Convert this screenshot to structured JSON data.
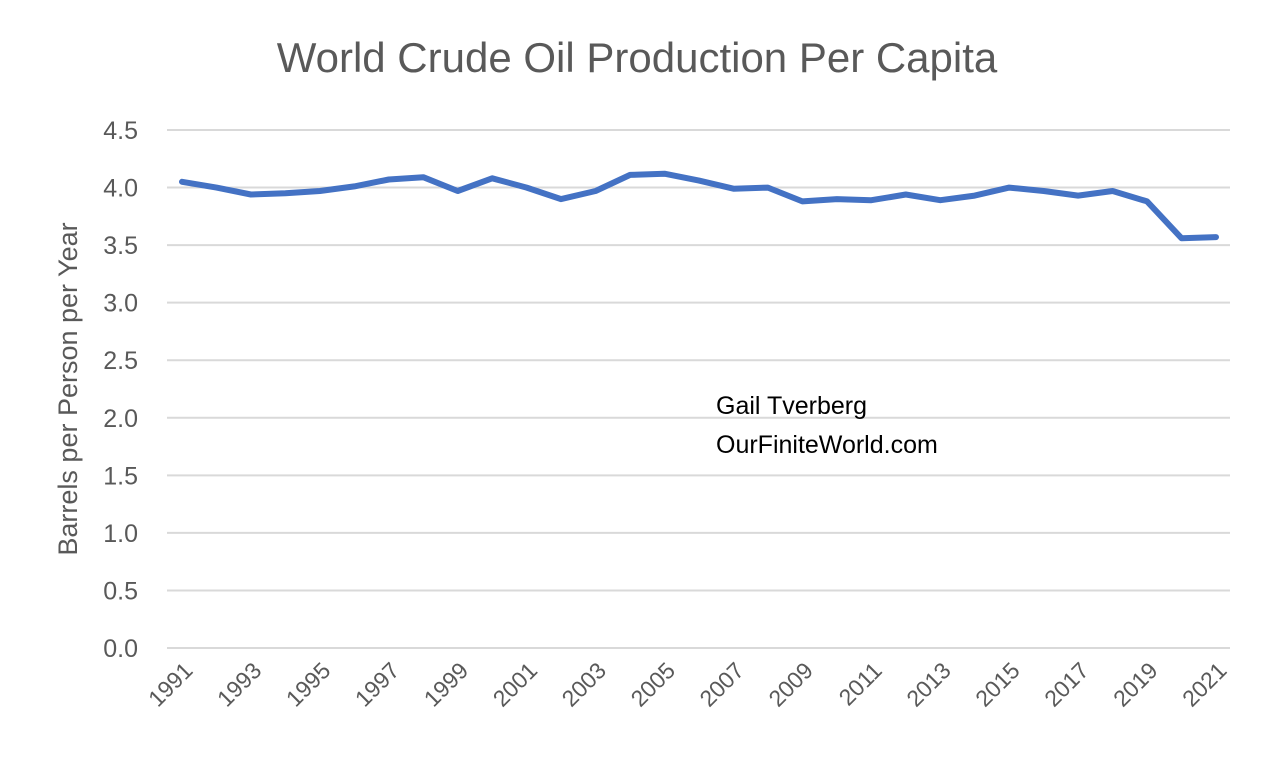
{
  "chart_data": {
    "type": "line",
    "title": "World Crude Oil Production Per Capita",
    "xlabel": "",
    "ylabel": "Barrels per Person per Year",
    "ylim": [
      0,
      4.5
    ],
    "yticks": [
      "0.0",
      "0.5",
      "1.0",
      "1.5",
      "2.0",
      "2.5",
      "3.0",
      "3.5",
      "4.0",
      "4.5"
    ],
    "x": [
      1991,
      1992,
      1993,
      1994,
      1995,
      1996,
      1997,
      1998,
      1999,
      2000,
      2001,
      2002,
      2003,
      2004,
      2005,
      2006,
      2007,
      2008,
      2009,
      2010,
      2011,
      2012,
      2013,
      2014,
      2015,
      2016,
      2017,
      2018,
      2019,
      2020,
      2021
    ],
    "xtick_labels": [
      "1991",
      "1993",
      "1995",
      "1997",
      "1999",
      "2001",
      "2003",
      "2005",
      "2007",
      "2009",
      "2011",
      "2013",
      "2015",
      "2017",
      "2019",
      "2021"
    ],
    "series": [
      {
        "values": [
          4.05,
          4.0,
          3.94,
          3.95,
          3.97,
          4.01,
          4.07,
          4.09,
          3.97,
          4.08,
          4.0,
          3.9,
          3.97,
          4.11,
          4.12,
          4.06,
          3.99,
          4.0,
          3.88,
          3.9,
          3.89,
          3.94,
          3.89,
          3.93,
          4.0,
          3.97,
          3.93,
          3.97,
          3.88,
          3.56,
          3.57
        ],
        "color": "#4472C4"
      }
    ],
    "grid": true,
    "legend": "none",
    "annotations": [
      "Gail Tverberg",
      "OurFiniteWorld.com"
    ]
  },
  "colors": {
    "line": "#4472C4",
    "grid": "#d9d9d9",
    "text": "#595959"
  }
}
